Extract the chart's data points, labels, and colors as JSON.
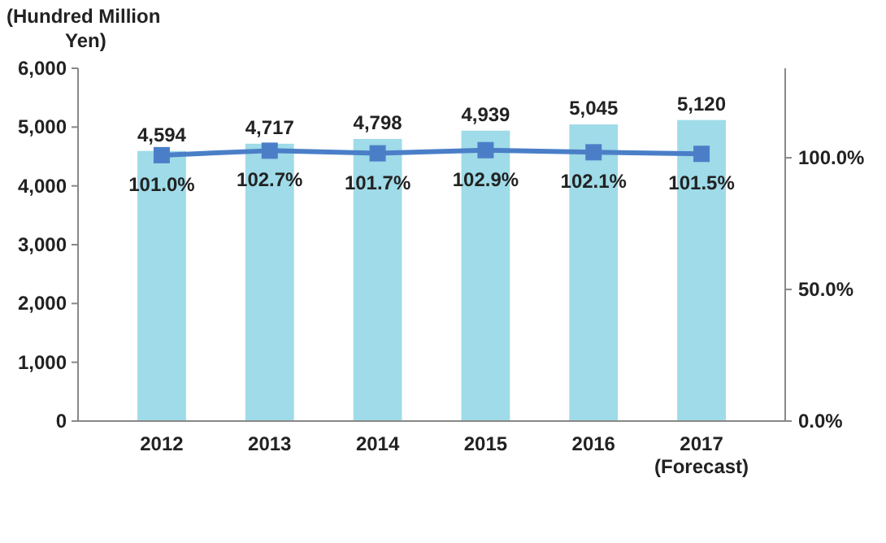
{
  "chart_data": {
    "type": "bar",
    "ylabel": "(Hundred Million Yen)",
    "categories": [
      "2012",
      "2013",
      "2014",
      "2015",
      "2016",
      "2017 (Forecast)"
    ],
    "series": [
      {
        "color": "#9fdbe8",
        "values": [
          4594,
          4717,
          4798,
          4939,
          5045,
          5120
        ],
        "value_labels": [
          "4,594",
          "4,717",
          "4,798",
          "4,939",
          "5,045",
          "5,120"
        ]
      },
      {
        "type": "line",
        "axis": "y2",
        "color": "#4a7fc8",
        "marker": "square",
        "values": [
          101.0,
          102.7,
          101.7,
          102.9,
          102.1,
          101.5
        ],
        "value_labels": [
          "101.0%",
          "102.7%",
          "101.7%",
          "102.9%",
          "102.1%",
          "101.5%"
        ]
      }
    ],
    "ylim": [
      0,
      6000
    ],
    "yticks": [
      {
        "value": 0,
        "label": "0"
      },
      {
        "value": 1000,
        "label": "1,000"
      },
      {
        "value": 2000,
        "label": "2,000"
      },
      {
        "value": 3000,
        "label": "3,000"
      },
      {
        "value": 4000,
        "label": "4,000"
      },
      {
        "value": 5000,
        "label": "5,000"
      },
      {
        "value": 6000,
        "label": "6,000"
      }
    ],
    "y2lim": [
      0,
      134
    ],
    "y2ticks": [
      {
        "value": 0,
        "label": "0.0%"
      },
      {
        "value": 50,
        "label": "50.0%"
      },
      {
        "value": 100,
        "label": "100.0%"
      }
    ],
    "grid": false
  }
}
